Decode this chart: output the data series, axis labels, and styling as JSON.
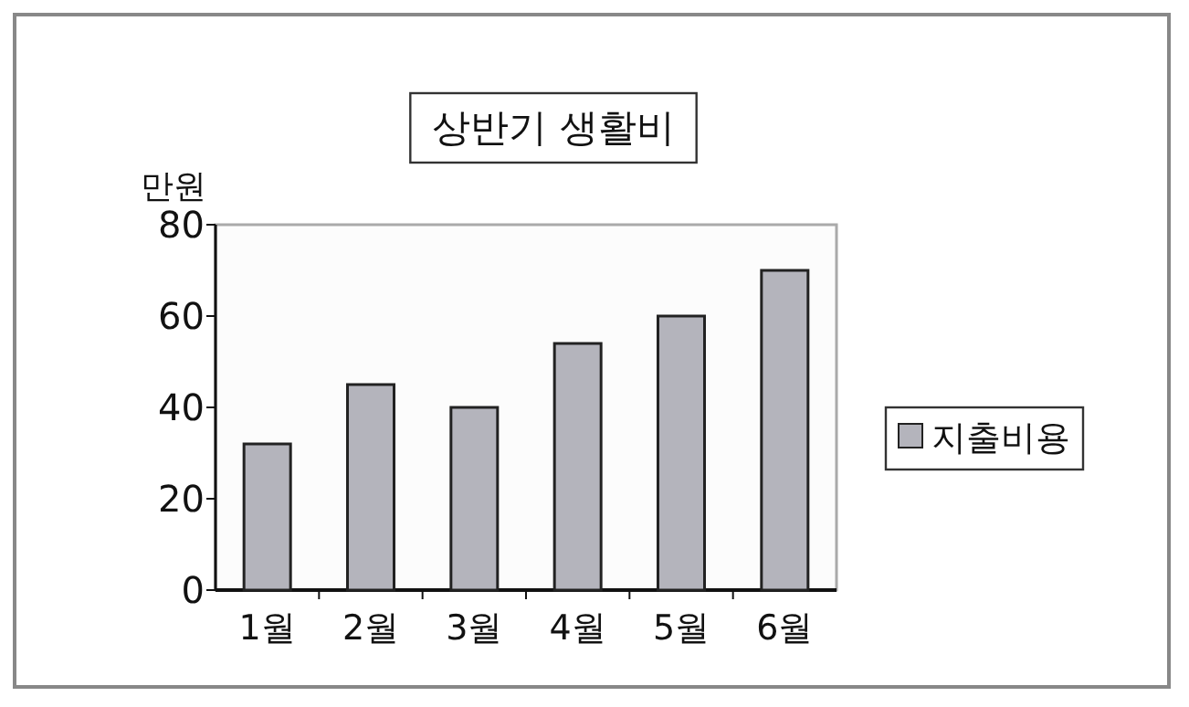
{
  "chart_data": {
    "type": "bar",
    "title": "상반기 생활비",
    "ylabel": "만원",
    "categories": [
      "1월",
      "2월",
      "3월",
      "4월",
      "5월",
      "6월"
    ],
    "series": [
      {
        "name": "지출비용",
        "color": "#b4b4bc",
        "values": [
          32,
          45,
          40,
          54,
          60,
          70
        ]
      }
    ],
    "ylim": [
      0,
      80
    ],
    "yticks": [
      0,
      20,
      40,
      60,
      80
    ],
    "legend": "right"
  }
}
